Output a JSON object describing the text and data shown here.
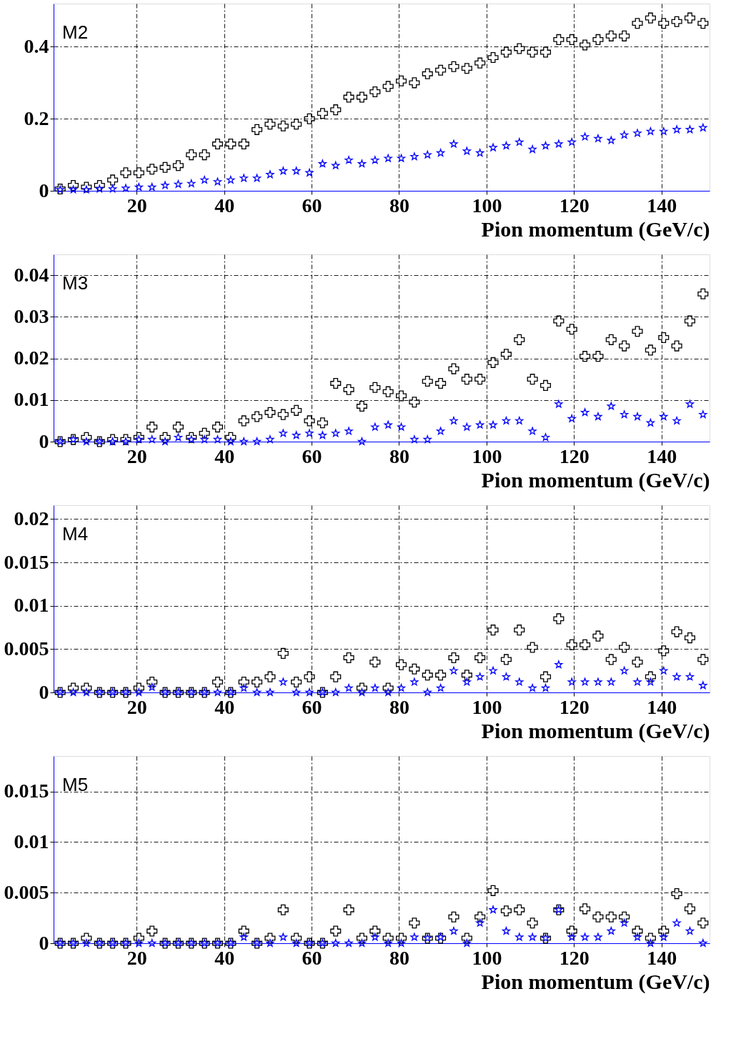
{
  "chart_data": [
    {
      "type": "scatter",
      "annotations": [
        "M2"
      ],
      "xlabel": "Pion momentum (GeV/c)",
      "grid": true,
      "xlim": [
        1,
        151
      ],
      "xticks": [
        20,
        40,
        60,
        80,
        100,
        120,
        140
      ],
      "ylim": [
        0,
        0.52
      ],
      "yticks": [
        0,
        0.2,
        0.4
      ],
      "x": [
        2.5,
        5.5,
        8.5,
        11.5,
        14.5,
        17.5,
        20.5,
        23.5,
        26.5,
        29.5,
        32.5,
        35.5,
        38.5,
        41.5,
        44.5,
        47.5,
        50.5,
        53.5,
        56.5,
        59.5,
        62.5,
        65.5,
        68.5,
        71.5,
        74.5,
        77.5,
        80.5,
        83.5,
        86.5,
        89.5,
        92.5,
        95.5,
        98.5,
        101.5,
        104.5,
        107.5,
        110.5,
        113.5,
        116.5,
        119.5,
        122.5,
        125.5,
        128.5,
        131.5,
        134.5,
        137.5,
        140.5,
        143.5,
        146.5,
        149.5
      ],
      "series": [
        {
          "color": "#000000",
          "marker": "cross",
          "values": [
            0.005,
            0.015,
            0.01,
            0.015,
            0.03,
            0.05,
            0.05,
            0.06,
            0.065,
            0.07,
            0.1,
            0.1,
            0.13,
            0.13,
            0.13,
            0.17,
            0.185,
            0.18,
            0.185,
            0.2,
            0.215,
            0.225,
            0.26,
            0.26,
            0.275,
            0.29,
            0.305,
            0.3,
            0.325,
            0.335,
            0.345,
            0.34,
            0.355,
            0.37,
            0.385,
            0.395,
            0.385,
            0.385,
            0.42,
            0.42,
            0.405,
            0.42,
            0.43,
            0.43,
            0.465,
            0.48,
            0.465,
            0.47,
            0.48,
            0.465
          ]
        },
        {
          "color": "#0000ff",
          "marker": "star",
          "values": [
            0.003,
            0.003,
            0.003,
            0.005,
            0.005,
            0.007,
            0.01,
            0.01,
            0.015,
            0.018,
            0.02,
            0.03,
            0.025,
            0.03,
            0.035,
            0.035,
            0.045,
            0.055,
            0.055,
            0.05,
            0.075,
            0.07,
            0.085,
            0.075,
            0.085,
            0.09,
            0.09,
            0.095,
            0.1,
            0.105,
            0.13,
            0.11,
            0.105,
            0.12,
            0.125,
            0.135,
            0.115,
            0.125,
            0.13,
            0.135,
            0.15,
            0.145,
            0.14,
            0.155,
            0.16,
            0.165,
            0.165,
            0.17,
            0.17,
            0.175
          ]
        }
      ]
    },
    {
      "type": "scatter",
      "annotations": [
        "M3"
      ],
      "xlabel": "Pion momentum (GeV/c)",
      "grid": true,
      "xlim": [
        1,
        151
      ],
      "xticks": [
        20,
        40,
        60,
        80,
        100,
        120,
        140
      ],
      "ylim": [
        0,
        0.045
      ],
      "yticks": [
        0,
        0.01,
        0.02,
        0.03,
        0.04
      ],
      "x": [
        2.5,
        5.5,
        8.5,
        11.5,
        14.5,
        17.5,
        20.5,
        23.5,
        26.5,
        29.5,
        32.5,
        35.5,
        38.5,
        41.5,
        44.5,
        47.5,
        50.5,
        53.5,
        56.5,
        59.5,
        62.5,
        65.5,
        68.5,
        71.5,
        74.5,
        77.5,
        80.5,
        83.5,
        86.5,
        89.5,
        92.5,
        95.5,
        98.5,
        101.5,
        104.5,
        107.5,
        110.5,
        113.5,
        116.5,
        119.5,
        122.5,
        125.5,
        128.5,
        131.5,
        134.5,
        137.5,
        140.5,
        143.5,
        146.5,
        149.5
      ],
      "series": [
        {
          "color": "#000000",
          "marker": "cross",
          "values": [
            0,
            0.0005,
            0.001,
            0,
            0.0005,
            0.0005,
            0.001,
            0.0035,
            0.001,
            0.0035,
            0.001,
            0.002,
            0.0035,
            0.001,
            0.005,
            0.006,
            0.007,
            0.0065,
            0.0075,
            0.005,
            0.0045,
            0.014,
            0.0125,
            0.0085,
            0.013,
            0.012,
            0.011,
            0.0095,
            0.0145,
            0.014,
            0.0175,
            0.015,
            0.015,
            0.019,
            0.021,
            0.0245,
            0.015,
            0.0135,
            0.029,
            0.027,
            0.0205,
            0.0205,
            0.0245,
            0.023,
            0.0265,
            0.022,
            0.025,
            0.023,
            0.029,
            0.0355
          ]
        },
        {
          "color": "#0000ff",
          "marker": "star",
          "values": [
            0,
            0.0005,
            0,
            0,
            0,
            0,
            0.0005,
            0.0005,
            0,
            0.001,
            0.0005,
            0.0005,
            0.0005,
            0,
            0,
            0,
            0.0005,
            0.002,
            0.0015,
            0.002,
            0.0015,
            0.002,
            0.0025,
            0,
            0.0035,
            0.004,
            0.0035,
            0.0005,
            0.0005,
            0.0025,
            0.005,
            0.0035,
            0.004,
            0.004,
            0.005,
            0.005,
            0.0025,
            0.001,
            0.009,
            0.0055,
            0.007,
            0.006,
            0.0085,
            0.0065,
            0.006,
            0.0045,
            0.006,
            0.005,
            0.009,
            0.0065
          ]
        }
      ]
    },
    {
      "type": "scatter",
      "annotations": [
        "M4"
      ],
      "xlabel": "Pion momentum (GeV/c)",
      "grid": true,
      "xlim": [
        1,
        151
      ],
      "xticks": [
        20,
        40,
        60,
        80,
        100,
        120,
        140
      ],
      "ylim": [
        0,
        0.0216
      ],
      "yticks": [
        0,
        0.005,
        0.01,
        0.015,
        0.02
      ],
      "x": [
        2.5,
        5.5,
        8.5,
        11.5,
        14.5,
        17.5,
        20.5,
        23.5,
        26.5,
        29.5,
        32.5,
        35.5,
        38.5,
        41.5,
        44.5,
        47.5,
        50.5,
        53.5,
        56.5,
        59.5,
        62.5,
        65.5,
        68.5,
        71.5,
        74.5,
        77.5,
        80.5,
        83.5,
        86.5,
        89.5,
        92.5,
        95.5,
        98.5,
        101.5,
        104.5,
        107.5,
        110.5,
        113.5,
        116.5,
        119.5,
        122.5,
        125.5,
        128.5,
        131.5,
        134.5,
        137.5,
        140.5,
        143.5,
        146.5,
        149.5
      ],
      "series": [
        {
          "color": "#000000",
          "marker": "cross",
          "values": [
            0,
            0.0005,
            0.0005,
            0,
            0,
            0,
            0.0005,
            0.0012,
            0,
            0,
            0,
            0,
            0.0012,
            0,
            0.0012,
            0.0012,
            0.0018,
            0.0045,
            0.0012,
            0.0018,
            0,
            0.0018,
            0.004,
            0.0005,
            0.0035,
            0.0005,
            0.0032,
            0.0027,
            0.002,
            0.002,
            0.004,
            0.002,
            0.004,
            0.0072,
            0.0038,
            0.0072,
            0.0052,
            0.0018,
            0.0085,
            0.0055,
            0.0055,
            0.0065,
            0.0038,
            0.0052,
            0.0035,
            0.0018,
            0.0048,
            0.007,
            0.0063,
            0.0038
          ]
        },
        {
          "color": "#0000ff",
          "marker": "star",
          "values": [
            0,
            0,
            0,
            0,
            0,
            0,
            0,
            0.0006,
            0,
            0,
            0,
            0,
            0,
            0,
            0.0005,
            0,
            0,
            0.0012,
            0,
            0,
            0,
            0,
            0.0005,
            0,
            0.0005,
            0,
            0.0005,
            0.0012,
            0,
            0.0005,
            0.0025,
            0.0012,
            0.0018,
            0.0025,
            0.0018,
            0.0012,
            0.0005,
            0.0005,
            0.0032,
            0.0012,
            0.0012,
            0.0012,
            0.0012,
            0.0025,
            0.0012,
            0.0012,
            0.0025,
            0.0018,
            0.0018,
            0.0008
          ]
        }
      ]
    },
    {
      "type": "scatter",
      "annotations": [
        "M5"
      ],
      "xlabel": "Pion momentum (GeV/c)",
      "grid": true,
      "xlim": [
        1,
        151
      ],
      "xticks": [
        20,
        40,
        60,
        80,
        100,
        120,
        140
      ],
      "ylim": [
        0,
        0.0185
      ],
      "yticks": [
        0,
        0.005,
        0.01,
        0.015
      ],
      "x": [
        2.5,
        5.5,
        8.5,
        11.5,
        14.5,
        17.5,
        20.5,
        23.5,
        26.5,
        29.5,
        32.5,
        35.5,
        38.5,
        41.5,
        44.5,
        47.5,
        50.5,
        53.5,
        56.5,
        59.5,
        62.5,
        65.5,
        68.5,
        71.5,
        74.5,
        77.5,
        80.5,
        83.5,
        86.5,
        89.5,
        92.5,
        95.5,
        98.5,
        101.5,
        104.5,
        107.5,
        110.5,
        113.5,
        116.5,
        119.5,
        122.5,
        125.5,
        128.5,
        131.5,
        134.5,
        137.5,
        140.5,
        143.5,
        146.5,
        149.5
      ],
      "series": [
        {
          "color": "#000000",
          "marker": "cross",
          "values": [
            0,
            0,
            0.0005,
            0,
            0,
            0,
            0.0005,
            0.0012,
            0,
            0,
            0,
            0,
            0,
            0,
            0.0012,
            0,
            0.0005,
            0.0033,
            0.0005,
            0,
            0,
            0.0012,
            0.0033,
            0.0005,
            0.0012,
            0.0005,
            0.0005,
            0.002,
            0.0005,
            0.0005,
            0.0026,
            0.0005,
            0.0026,
            0.0052,
            0.0032,
            0.0033,
            0.002,
            0.0005,
            0.0033,
            0.0012,
            0.0034,
            0.0026,
            0.0026,
            0.0026,
            0.0012,
            0.0005,
            0.0012,
            0.0049,
            0.0034,
            0.002
          ]
        },
        {
          "color": "#0000ff",
          "marker": "star",
          "values": [
            0,
            0,
            0,
            0,
            0,
            0,
            0,
            0,
            0,
            0,
            0,
            0,
            0,
            0,
            0.0006,
            0,
            0,
            0.0006,
            0,
            0,
            0,
            0,
            0,
            0,
            0.0006,
            0,
            0,
            0.0006,
            0.0005,
            0.0006,
            0.0012,
            0,
            0.002,
            0.0033,
            0.0012,
            0.0006,
            0.0006,
            0.0005,
            0.0033,
            0.0006,
            0.0006,
            0.0006,
            0.0012,
            0.002,
            0.0006,
            0,
            0.0006,
            0.002,
            0.0012,
            0
          ]
        }
      ]
    }
  ]
}
